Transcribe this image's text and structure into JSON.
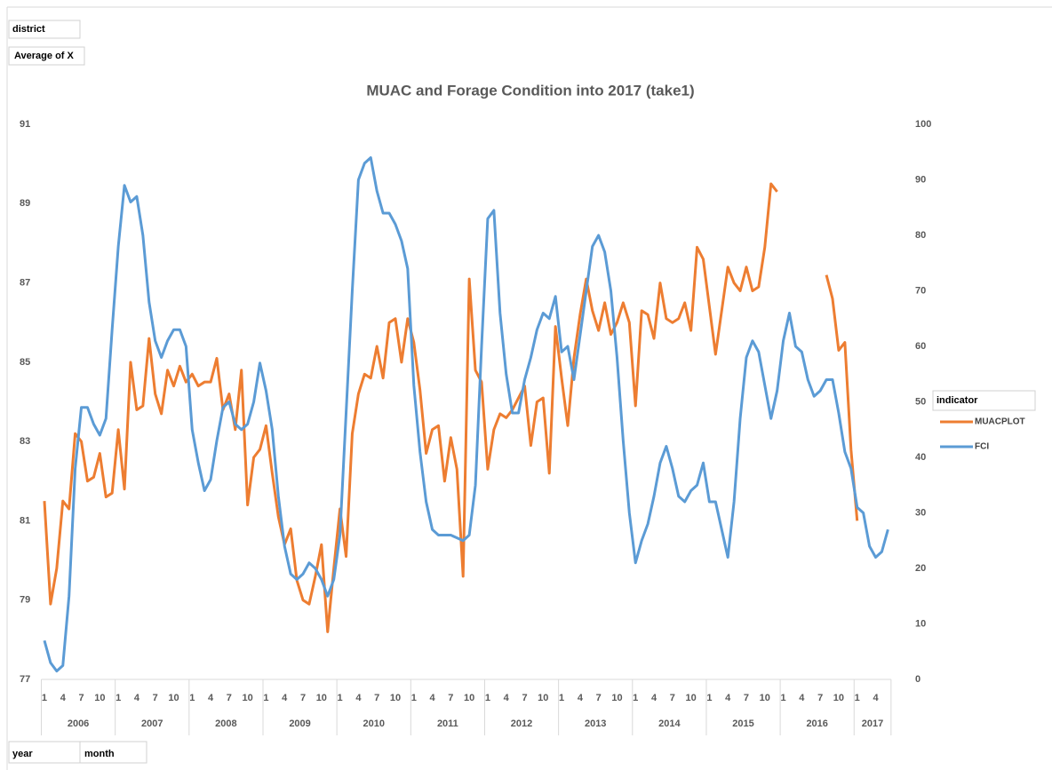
{
  "fields": {
    "filter": "district",
    "value": "Average of X",
    "legend": "indicator",
    "axis": [
      "year",
      "month"
    ]
  },
  "chart_data": {
    "type": "line",
    "title": "MUAC and Forage Condition into 2017 (take1)",
    "categories": [
      "1",
      null,
      null,
      "4",
      null,
      null,
      "7",
      null,
      null,
      "10",
      null,
      null,
      "1",
      null,
      null,
      "4",
      null,
      null,
      "7",
      null,
      null,
      "10",
      null,
      null,
      "1",
      null,
      null,
      "4",
      null,
      null,
      "7",
      null,
      null,
      "10",
      null,
      null,
      "1",
      null,
      null,
      "4",
      null,
      null,
      "7",
      null,
      null,
      "10",
      null,
      null,
      "1",
      null,
      null,
      "4",
      null,
      null,
      "7",
      null,
      null,
      "10",
      null,
      null,
      "1",
      null,
      null,
      "4",
      null,
      null,
      "7",
      null,
      null,
      "10",
      null,
      null,
      "1",
      null,
      null,
      "4",
      null,
      null,
      "7",
      null,
      null,
      "10",
      null,
      null,
      "1",
      null,
      null,
      "4",
      null,
      null,
      "7",
      null,
      null,
      "10",
      null,
      null,
      "1",
      null,
      null,
      "4",
      null,
      null,
      "7",
      null,
      null,
      "10",
      null,
      null,
      "1",
      null,
      null,
      "4",
      null,
      null,
      "7",
      null,
      null,
      "10",
      null,
      null,
      "1",
      null,
      null,
      "4",
      null,
      null,
      "7",
      null,
      null,
      "10",
      null,
      null,
      "1",
      null,
      null,
      "4",
      null,
      null
    ],
    "groups": [
      "2006",
      "2007",
      "2008",
      "2009",
      "2010",
      "2011",
      "2012",
      "2013",
      "2014",
      "2015",
      "2016",
      "2017"
    ],
    "series": [
      {
        "name": "MUACPLOT",
        "color": "#ed7d31",
        "axis": "y",
        "values": [
          81.5,
          78.9,
          79.8,
          81.5,
          81.3,
          83.2,
          83.0,
          82.0,
          82.1,
          82.7,
          81.6,
          81.7,
          83.3,
          81.8,
          85.0,
          83.8,
          83.9,
          85.6,
          84.2,
          83.7,
          84.8,
          84.4,
          84.9,
          84.5,
          84.7,
          84.4,
          84.5,
          84.5,
          85.1,
          83.8,
          84.2,
          83.3,
          84.8,
          81.4,
          82.6,
          82.8,
          83.4,
          82.2,
          81.1,
          80.4,
          80.8,
          79.5,
          79.0,
          78.9,
          79.6,
          80.4,
          78.2,
          79.8,
          81.3,
          80.1,
          83.2,
          84.2,
          84.7,
          84.6,
          85.4,
          84.6,
          86.0,
          86.1,
          85.0,
          86.1,
          85.5,
          84.3,
          82.7,
          83.3,
          83.4,
          82.0,
          83.1,
          82.3,
          79.6,
          87.1,
          84.8,
          84.5,
          82.3,
          83.3,
          83.7,
          83.6,
          83.8,
          84.1,
          84.4,
          82.9,
          84.0,
          84.1,
          82.2,
          85.9,
          84.6,
          83.4,
          85.1,
          86.2,
          87.1,
          86.3,
          85.8,
          86.5,
          85.7,
          86.0,
          86.5,
          86.0,
          83.9,
          86.3,
          86.2,
          85.6,
          87.0,
          86.1,
          86.0,
          86.1,
          86.5,
          85.8,
          87.9,
          87.6,
          86.4,
          85.2,
          86.3,
          87.4,
          87.0,
          86.8,
          87.4,
          86.8,
          86.9,
          87.9,
          89.5,
          89.3,
          null,
          null,
          null,
          null,
          null,
          null,
          null,
          87.2,
          86.6,
          85.3,
          85.5,
          82.8,
          81.0,
          null,
          null,
          null,
          null,
          null
        ]
      },
      {
        "name": "FCI",
        "color": "#5b9bd5",
        "axis": "y2",
        "values": [
          7,
          3,
          1.5,
          2.5,
          15,
          38,
          49,
          49,
          46,
          44,
          47,
          63,
          78,
          89,
          86,
          87,
          80,
          68,
          61,
          58,
          61,
          63,
          63,
          60,
          45,
          39,
          34,
          36,
          43,
          49,
          50,
          46,
          45,
          46,
          50,
          57,
          52,
          45,
          33,
          24,
          19,
          18,
          19,
          21,
          20,
          18,
          15,
          18,
          26,
          48,
          70,
          90,
          93,
          94,
          88,
          84,
          84,
          82,
          79,
          74,
          53,
          41,
          32,
          27,
          26,
          26,
          26,
          25.5,
          25,
          26,
          35,
          60,
          83,
          84.5,
          66,
          55,
          48,
          48,
          54,
          58,
          63,
          66,
          65,
          69,
          59,
          60,
          54,
          62,
          70,
          78,
          80,
          77,
          70,
          58,
          43,
          30,
          21,
          25,
          28,
          33,
          39,
          42,
          38,
          33,
          32,
          34,
          35,
          39,
          32,
          32,
          27,
          22,
          32,
          47,
          58,
          61,
          59,
          53,
          47,
          52,
          61,
          66,
          60,
          59,
          54,
          51,
          52,
          54,
          54,
          48,
          41,
          38,
          31,
          30,
          24,
          22,
          23,
          27
        ]
      }
    ],
    "ylim": [
      77,
      91
    ],
    "yticks": [
      77,
      79,
      81,
      83,
      85,
      87,
      89,
      91
    ],
    "y2lim": [
      0,
      100
    ],
    "y2ticks": [
      0,
      10,
      20,
      30,
      40,
      50,
      60,
      70,
      80,
      90,
      100
    ],
    "grid": false,
    "legend": "right"
  }
}
